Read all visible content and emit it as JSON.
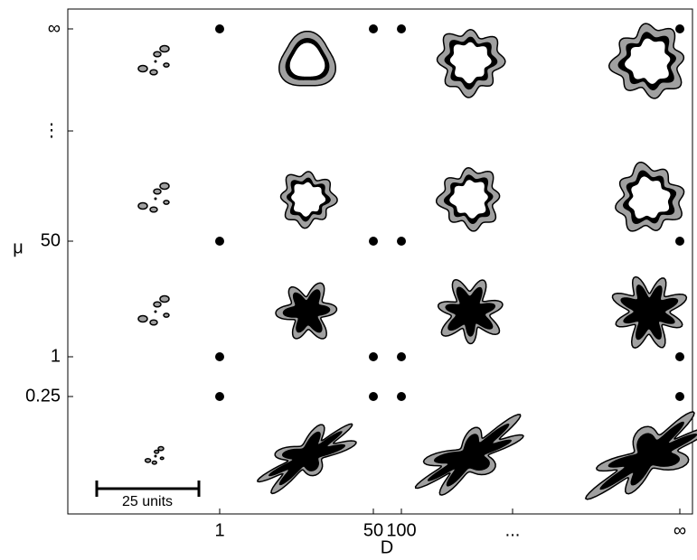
{
  "x_axis": {
    "label": "D",
    "ticks": [
      "1",
      "50",
      "100",
      "...",
      "∞"
    ]
  },
  "y_axis": {
    "label": "μ",
    "ticks": [
      "∞",
      "⋮",
      "50",
      "1",
      "0.25"
    ]
  },
  "scale_bar": {
    "label": "25 units"
  }
}
